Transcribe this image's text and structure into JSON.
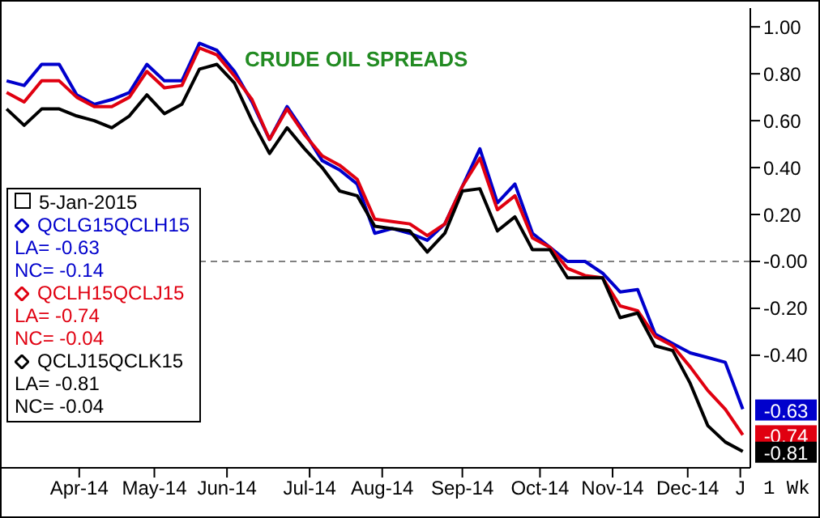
{
  "chart_data": {
    "type": "line",
    "title": "CRUDE OIL SPREADS",
    "legend_title": "5-Jan-2015",
    "x": [
      "2014-03-17",
      "2014-03-24",
      "2014-03-31",
      "2014-04-07",
      "2014-04-14",
      "2014-04-21",
      "2014-04-28",
      "2014-05-05",
      "2014-05-12",
      "2014-05-19",
      "2014-05-26",
      "2014-06-02",
      "2014-06-09",
      "2014-06-16",
      "2014-06-23",
      "2014-06-30",
      "2014-07-07",
      "2014-07-14",
      "2014-07-21",
      "2014-07-28",
      "2014-08-04",
      "2014-08-11",
      "2014-08-18",
      "2014-08-25",
      "2014-09-01",
      "2014-09-08",
      "2014-09-15",
      "2014-09-22",
      "2014-09-29",
      "2014-10-06",
      "2014-10-13",
      "2014-10-20",
      "2014-10-27",
      "2014-11-03",
      "2014-11-10",
      "2014-11-17",
      "2014-11-24",
      "2014-12-01",
      "2014-12-08",
      "2014-12-15",
      "2014-12-22",
      "2014-12-29",
      "2015-01-05"
    ],
    "series": [
      {
        "name": "QCLG15QCLH15",
        "color": "#0000cc",
        "values": [
          0.77,
          0.75,
          0.84,
          0.84,
          0.71,
          0.67,
          0.69,
          0.72,
          0.84,
          0.77,
          0.77,
          0.93,
          0.9,
          0.81,
          0.68,
          0.52,
          0.66,
          0.55,
          0.43,
          0.39,
          0.33,
          0.12,
          0.14,
          0.12,
          0.09,
          0.16,
          0.32,
          0.48,
          0.25,
          0.33,
          0.12,
          0.06,
          0.0,
          0.0,
          -0.05,
          -0.13,
          -0.12,
          -0.31,
          -0.35,
          -0.39,
          -0.41,
          -0.43,
          -0.63
        ],
        "value_labels": [
          null,
          null,
          null,
          null,
          null,
          null,
          null,
          null,
          null,
          null,
          null,
          null,
          null,
          null,
          null,
          null,
          null,
          null,
          null,
          null,
          null,
          null,
          null,
          null,
          null,
          null,
          null,
          null,
          null,
          null,
          null,
          null,
          null,
          null,
          null,
          null,
          null,
          null,
          null,
          null,
          null,
          null,
          "-0.63"
        ]
      },
      {
        "name": "QCLH15QCLJ15",
        "color": "#e00010",
        "values": [
          0.72,
          0.68,
          0.77,
          0.77,
          0.7,
          0.66,
          0.66,
          0.7,
          0.81,
          0.74,
          0.75,
          0.91,
          0.88,
          0.79,
          0.69,
          0.52,
          0.65,
          0.54,
          0.45,
          0.41,
          0.35,
          0.18,
          0.17,
          0.16,
          0.11,
          0.16,
          0.32,
          0.44,
          0.22,
          0.28,
          0.1,
          0.06,
          -0.03,
          -0.06,
          -0.07,
          -0.19,
          -0.21,
          -0.32,
          -0.36,
          -0.45,
          -0.55,
          -0.63,
          -0.74
        ],
        "value_labels": [
          null,
          null,
          null,
          null,
          null,
          null,
          null,
          null,
          null,
          null,
          null,
          null,
          null,
          null,
          null,
          null,
          null,
          null,
          null,
          null,
          null,
          null,
          null,
          null,
          null,
          null,
          null,
          null,
          null,
          null,
          null,
          null,
          null,
          null,
          null,
          null,
          null,
          null,
          null,
          null,
          null,
          null,
          "-0.74"
        ]
      },
      {
        "name": "QCLJ15QCLK15",
        "color": "#000000",
        "values": [
          0.65,
          0.58,
          0.65,
          0.65,
          0.62,
          0.6,
          0.57,
          0.62,
          0.71,
          0.63,
          0.67,
          0.82,
          0.84,
          0.76,
          0.6,
          0.46,
          0.57,
          0.48,
          0.4,
          0.3,
          0.28,
          0.15,
          0.14,
          0.13,
          0.04,
          0.12,
          0.3,
          0.31,
          0.13,
          0.19,
          0.05,
          0.05,
          -0.07,
          -0.07,
          -0.07,
          -0.24,
          -0.22,
          -0.36,
          -0.38,
          -0.52,
          -0.7,
          -0.77,
          -0.81
        ],
        "value_labels": [
          null,
          null,
          null,
          null,
          null,
          null,
          null,
          null,
          null,
          null,
          null,
          null,
          null,
          null,
          null,
          null,
          null,
          null,
          null,
          null,
          null,
          null,
          null,
          null,
          null,
          null,
          null,
          null,
          null,
          null,
          null,
          null,
          null,
          null,
          null,
          null,
          null,
          null,
          null,
          null,
          null,
          null,
          "-0.81"
        ]
      }
    ],
    "annotations": [
      "LA= -0.63",
      "NC= -0.14",
      "LA= -0.74",
      "NC= -0.04",
      "LA= -0.81",
      "NC= -0.04",
      "1 Wk"
    ],
    "xlim": [
      "2014-03-15",
      "2015-01-08"
    ],
    "xticks": [
      {
        "value": "2014-04-15",
        "label": "Apr-14"
      },
      {
        "value": "2014-05-15",
        "label": "May-14"
      },
      {
        "value": "2014-06-13",
        "label": "Jun-14"
      },
      {
        "value": "2014-07-16",
        "label": "Jul-14"
      },
      {
        "value": "2014-08-14",
        "label": "Aug-14"
      },
      {
        "value": "2014-09-15",
        "label": "Sep-14"
      },
      {
        "value": "2014-10-16",
        "label": "Oct-14"
      },
      {
        "value": "2014-11-14",
        "label": "Nov-14"
      },
      {
        "value": "2014-12-14",
        "label": "Dec-14"
      },
      {
        "value": "2015-01-04",
        "label": "J"
      }
    ],
    "ylim": [
      -0.88,
      1.08
    ],
    "yticks": [
      {
        "value": 1,
        "label": "1.00"
      },
      {
        "value": 0.8,
        "label": "0.80"
      },
      {
        "value": 0.6,
        "label": "0.60"
      },
      {
        "value": 0.4,
        "label": "0.40"
      },
      {
        "value": 0.2,
        "label": "0.20"
      },
      {
        "value": 0,
        "label": "-0.00"
      },
      {
        "value": -0.2,
        "label": "-0.20"
      },
      {
        "value": -0.4,
        "label": "-0.40"
      }
    ],
    "ref_lines": [
      {
        "axis": "y",
        "value": 0,
        "color": "#808080",
        "line_style": "dashed"
      }
    ],
    "legend": "left",
    "grid": false,
    "marker": "none",
    "line_style": "solid"
  }
}
